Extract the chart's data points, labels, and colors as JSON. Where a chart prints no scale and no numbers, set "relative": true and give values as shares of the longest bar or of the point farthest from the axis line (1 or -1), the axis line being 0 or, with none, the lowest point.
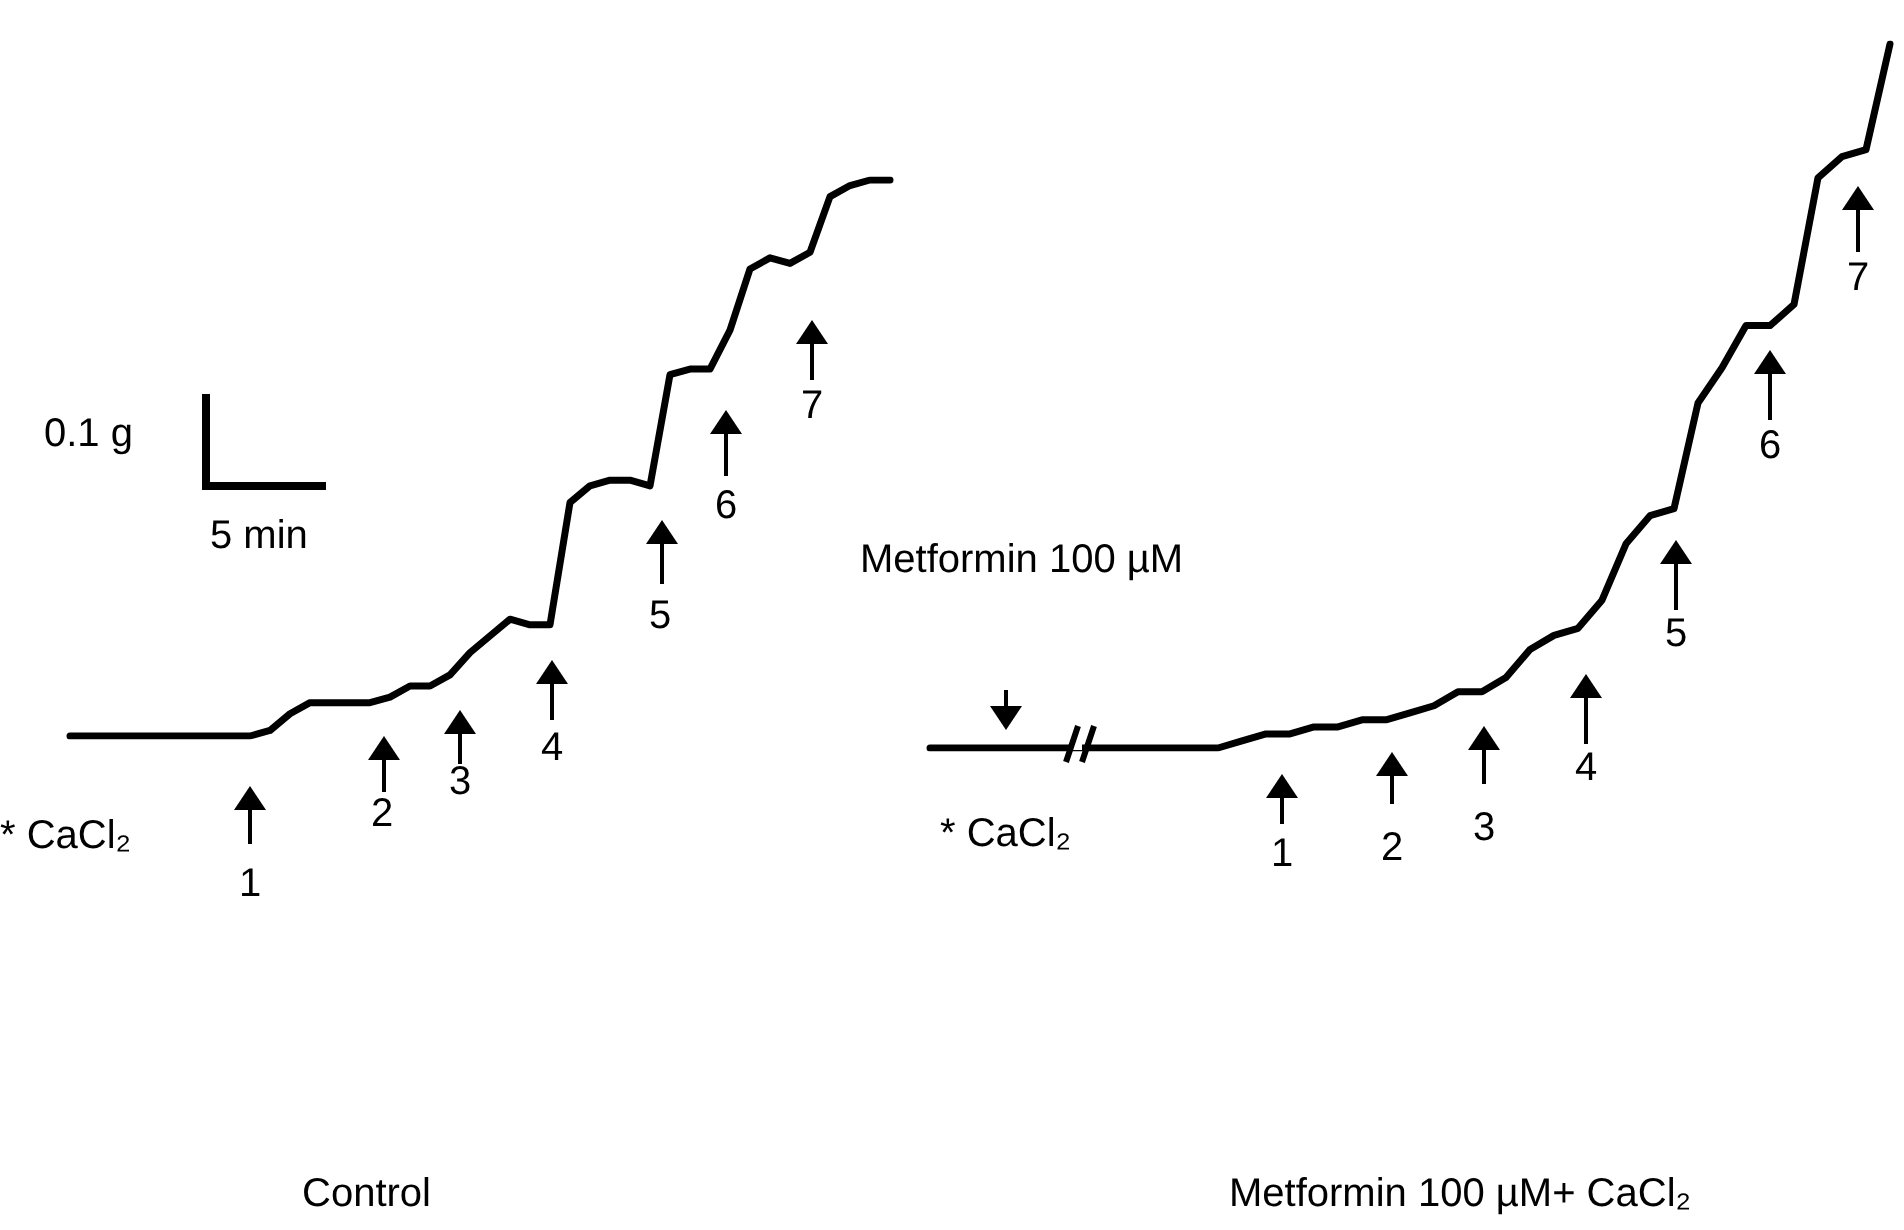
{
  "chart_data": [
    {
      "type": "line",
      "relative": true,
      "xlabel": "Control",
      "color": "#000000",
      "marker": "none",
      "categories": [
        null,
        null,
        null,
        null,
        null,
        null,
        null,
        null,
        null,
        null,
        null,
        null,
        null,
        null,
        null,
        null,
        null,
        null,
        null,
        null,
        null,
        null,
        null,
        null,
        null,
        null,
        null,
        null,
        null,
        null,
        null,
        null,
        null,
        null,
        null,
        null,
        null,
        null,
        null,
        null,
        null,
        null
      ],
      "values": [
        0,
        0,
        0,
        0,
        0,
        0,
        0,
        0,
        0,
        0,
        0.01,
        0.04,
        0.06,
        0.06,
        0.06,
        0.06,
        0.07,
        0.09,
        0.09,
        0.11,
        0.15,
        0.18,
        0.21,
        0.2,
        0.2,
        0.42,
        0.45,
        0.46,
        0.46,
        0.45,
        0.65,
        0.66,
        0.66,
        0.73,
        0.84,
        0.86,
        0.85,
        0.87,
        0.97,
        0.99,
        1,
        1
      ],
      "annotations": [
        "0.1 g",
        "5 min",
        "* CaCl₂",
        "1",
        "2",
        "3",
        "4",
        "5",
        "6",
        "7"
      ]
    },
    {
      "type": "line",
      "relative": true,
      "xlabel": "Metformin 100 µM+ CaCl₂",
      "color": "#000000",
      "marker": "none",
      "categories": [
        null,
        null,
        null,
        null,
        null,
        null,
        null,
        null,
        null,
        null,
        null,
        null,
        null,
        null,
        null,
        null,
        null,
        null,
        null,
        null,
        null,
        null,
        null,
        null,
        null,
        null,
        null,
        null,
        null,
        null,
        null,
        null,
        null,
        null,
        null,
        null,
        null,
        null,
        null,
        null,
        null
      ],
      "values": [
        0,
        0,
        0,
        0,
        0,
        0,
        0,
        0,
        0,
        0,
        0,
        0,
        0,
        0.01,
        0.02,
        0.02,
        0.03,
        0.03,
        0.04,
        0.04,
        0.05,
        0.06,
        0.08,
        0.08,
        0.1,
        0.14,
        0.16,
        0.17,
        0.21,
        0.29,
        0.33,
        0.34,
        0.49,
        0.54,
        0.6,
        0.6,
        0.63,
        0.81,
        0.84,
        0.85,
        1
      ],
      "annotations": [
        "Metformin 100 µM",
        "* CaCl₂",
        "1",
        "2",
        "3",
        "4",
        "5",
        "6",
        "7"
      ]
    }
  ]
}
